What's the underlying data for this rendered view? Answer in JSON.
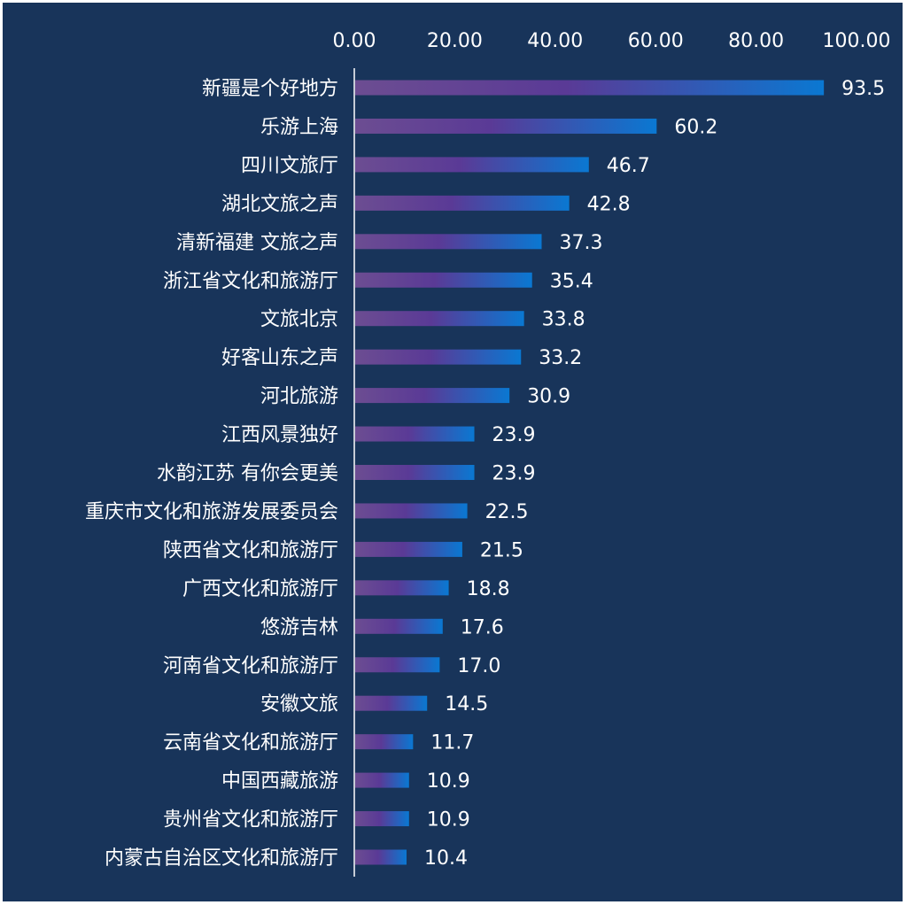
{
  "chart_data": {
    "type": "bar",
    "orientation": "horizontal",
    "categories": [
      "新疆是个好地方",
      "乐游上海",
      "四川文旅厅",
      "湖北文旅之声",
      "清新福建 文旅之声",
      "浙江省文化和旅游厅",
      "文旅北京",
      "好客山东之声",
      "河北旅游",
      "江西风景独好",
      "水韵江苏 有你会更美",
      "重庆市文化和旅游发展委员会",
      "陕西省文化和旅游厅",
      "广西文化和旅游厅",
      "悠游吉林",
      "河南省文化和旅游厅",
      "安徽文旅",
      "云南省文化和旅游厅",
      "中国西藏旅游",
      "贵州省文化和旅游厅",
      "内蒙古自治区文化和旅游厅"
    ],
    "values": [
      93.5,
      60.2,
      46.7,
      42.8,
      37.3,
      35.4,
      33.8,
      33.2,
      30.9,
      23.9,
      23.9,
      22.5,
      21.5,
      18.8,
      17.6,
      17.0,
      14.5,
      11.7,
      10.9,
      10.9,
      10.4
    ],
    "value_labels": [
      "93.5",
      "60.2",
      "46.7",
      "42.8",
      "37.3",
      "35.4",
      "33.8",
      "33.2",
      "30.9",
      "23.9",
      "23.9",
      "22.5",
      "21.5",
      "18.8",
      "17.6",
      "17.0",
      "14.5",
      "11.7",
      "10.9",
      "10.9",
      "10.4"
    ],
    "x_ticks": [
      "0.00",
      "20.00",
      "40.00",
      "60.00",
      "80.00",
      "100.00"
    ],
    "xlim": [
      0,
      100
    ],
    "x_axis_position": "top",
    "title": "",
    "xlabel": "",
    "ylabel": "",
    "grid": false,
    "legend": "none",
    "colors": {
      "background": "#18345a",
      "bar_gradient_start": "#6c4d92",
      "bar_gradient_mid": "#5a3a96",
      "bar_gradient_end": "#0a78d2",
      "axis_line": "#ffffff",
      "text": "#ffffff"
    }
  }
}
